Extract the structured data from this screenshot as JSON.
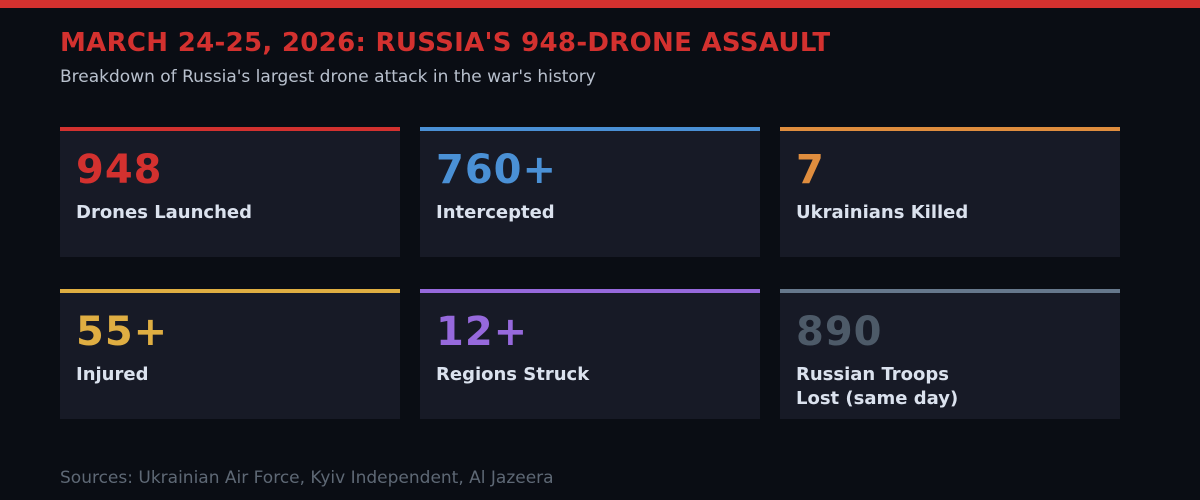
{
  "header": {
    "title": "MARCH 24-25, 2026: RUSSIA'S 948-DRONE ASSAULT",
    "subtitle": "Breakdown of Russia's largest drone attack in the war's history"
  },
  "stats": [
    {
      "value": "948",
      "label": "Drones Launched",
      "accent": "#d3312f"
    },
    {
      "value": "760+",
      "label": "Intercepted",
      "accent": "#4a90d5"
    },
    {
      "value": "7",
      "label": "Ukrainians Killed",
      "accent": "#df8d3e"
    },
    {
      "value": "55+",
      "label": "Injured",
      "accent": "#dfae42"
    },
    {
      "value": "12+",
      "label": "Regions Struck",
      "accent": "#9669dc"
    },
    {
      "value": "890",
      "label": "Russian Troops\nLost (same day)",
      "accent": "#66788c",
      "value_color": "#4d5a68"
    }
  ],
  "footer": {
    "sources": "Sources: Ukrainian Air Force, Kyiv Independent, Al Jazeera"
  },
  "colors": {
    "background": "#0a0d14",
    "card_background": "#171a26",
    "top_accent_bar": "#d3312f",
    "title": "#d3312f",
    "subtitle": "#b8c0cd",
    "label": "#dbe2ee",
    "sources": "#5e6875"
  },
  "chart_data": {
    "type": "table",
    "title": "MARCH 24-25, 2026: RUSSIA'S 948-DRONE ASSAULT",
    "subtitle": "Breakdown of Russia's largest drone attack in the war's history",
    "categories": [
      "Drones Launched",
      "Intercepted",
      "Ukrainians Killed",
      "Injured",
      "Regions Struck",
      "Russian Troops Lost (same day)"
    ],
    "values": [
      948,
      760,
      7,
      55,
      12,
      890
    ],
    "value_labels": [
      "948",
      "760+",
      "7",
      "55+",
      "12+",
      "890"
    ],
    "series_colors": [
      "#d3312f",
      "#4a90d5",
      "#df8d3e",
      "#dfae42",
      "#9669dc",
      "#66788c"
    ],
    "annotations": "Sources: Ukrainian Air Force, Kyiv Independent, Al Jazeera",
    "legend": false,
    "grid": false
  }
}
